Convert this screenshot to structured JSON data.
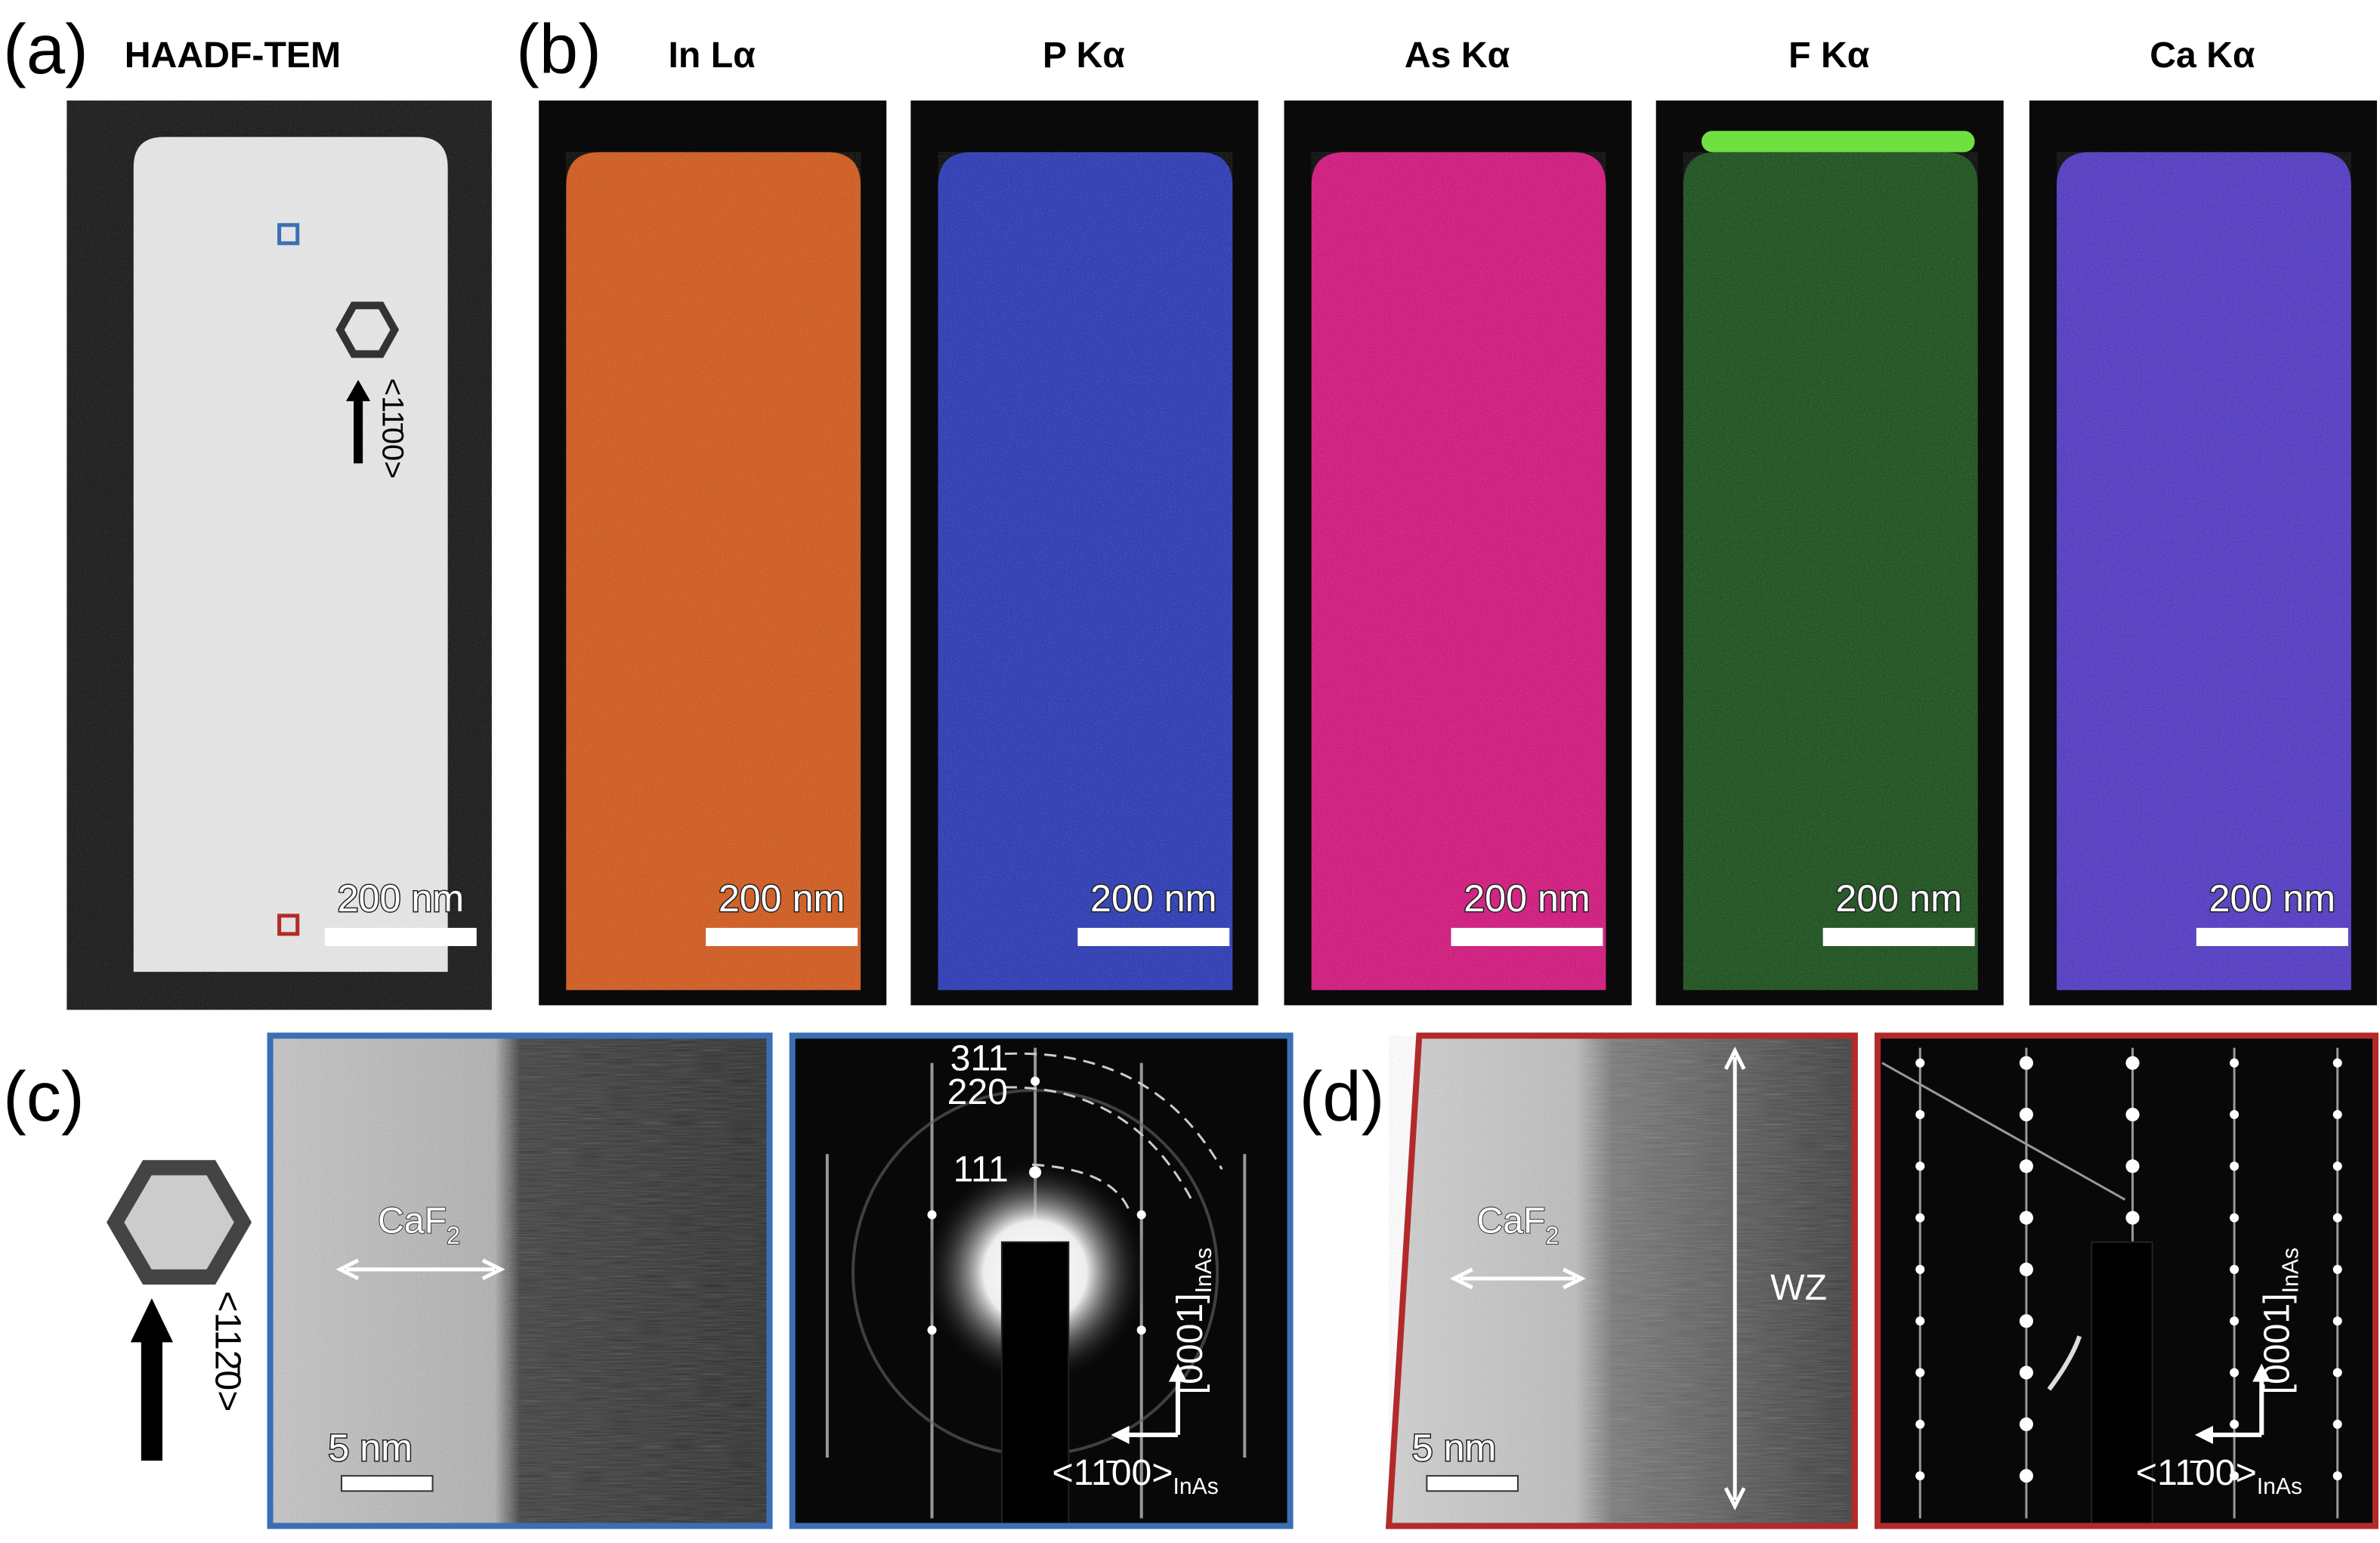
{
  "panels": {
    "a": {
      "label": "(a)",
      "title": "HAADF-TEM",
      "direction": "<11̄00>",
      "scale_bar": "200 nm"
    },
    "b": {
      "label": "(b)",
      "maps": [
        {
          "element": "In Lα",
          "scale_bar": "200 nm"
        },
        {
          "element": "P Kα",
          "scale_bar": "200 nm"
        },
        {
          "element": "As Kα",
          "scale_bar": "200 nm"
        },
        {
          "element": "F Kα",
          "scale_bar": "200 nm"
        },
        {
          "element": "Ca Kα",
          "scale_bar": "200 nm"
        }
      ]
    },
    "c": {
      "label": "(c)",
      "direction": "<112̄0>",
      "hrtem": {
        "material": {
          "main": "CaF",
          "sub": "2"
        },
        "scale_bar": "5 nm"
      },
      "diffraction": {
        "rings": [
          "311",
          "220",
          "111"
        ],
        "axis_vertical": {
          "main": "[0001]",
          "sub": "InAs"
        },
        "axis_horizontal": {
          "main": "<11̄00>",
          "sub": "InAs"
        }
      }
    },
    "d": {
      "label": "(d)",
      "hrtem": {
        "material": {
          "main": "CaF",
          "sub": "2"
        },
        "phase": "WZ",
        "scale_bar": "5 nm"
      },
      "diffraction": {
        "axis_vertical": {
          "main": "[0001]",
          "sub": "InAs"
        },
        "axis_horizontal": {
          "main": "<11̄00>",
          "sub": "InAs"
        }
      }
    }
  }
}
